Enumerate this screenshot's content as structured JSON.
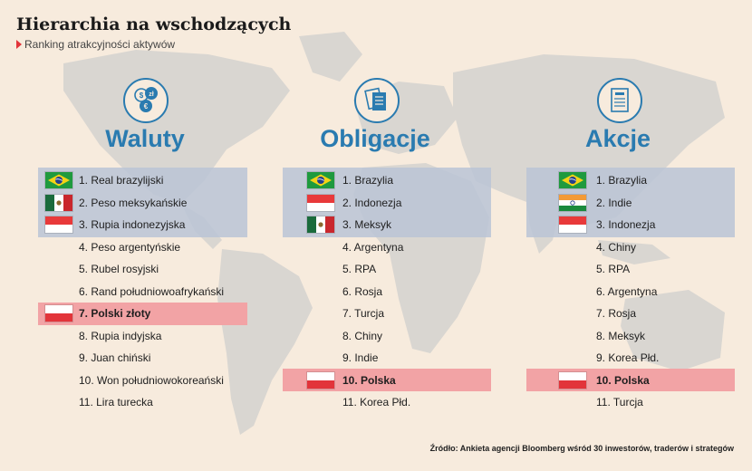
{
  "header": {
    "title": "Hierarchia na wschodzących",
    "subtitle": "Ranking atrakcyjności aktywów"
  },
  "columns": [
    {
      "title": "Waluty",
      "icon": "currency-coins-icon",
      "rows": [
        {
          "label": "1. Real brazylijski",
          "flag": "brazil",
          "highlight": "top"
        },
        {
          "label": "2. Peso meksykańskie",
          "flag": "mexico",
          "highlight": "top"
        },
        {
          "label": "3. Rupia indonezyjska",
          "flag": "indonesia",
          "highlight": "top"
        },
        {
          "label": "4. Peso argentyńskie",
          "flag": "",
          "highlight": ""
        },
        {
          "label": "5. Rubel rosyjski",
          "flag": "",
          "highlight": ""
        },
        {
          "label": "6. Rand południowoafrykański",
          "flag": "",
          "highlight": ""
        },
        {
          "label": "7. Polski złoty",
          "flag": "poland",
          "highlight": "pl"
        },
        {
          "label": "8. Rupia indyjska",
          "flag": "",
          "highlight": ""
        },
        {
          "label": "9. Juan chiński",
          "flag": "",
          "highlight": ""
        },
        {
          "label": "10. Won południowokoreański",
          "flag": "",
          "highlight": ""
        },
        {
          "label": "11. Lira turecka",
          "flag": "",
          "highlight": ""
        }
      ]
    },
    {
      "title": "Obligacje",
      "icon": "bond-documents-icon",
      "rows": [
        {
          "label": "1. Brazylia",
          "flag": "brazil",
          "highlight": "top"
        },
        {
          "label": "2. Indonezja",
          "flag": "indonesia",
          "highlight": "top"
        },
        {
          "label": "3. Meksyk",
          "flag": "mexico",
          "highlight": "top"
        },
        {
          "label": "4. Argentyna",
          "flag": "",
          "highlight": ""
        },
        {
          "label": "5. RPA",
          "flag": "",
          "highlight": ""
        },
        {
          "label": "6. Rosja",
          "flag": "",
          "highlight": ""
        },
        {
          "label": "7. Turcja",
          "flag": "",
          "highlight": ""
        },
        {
          "label": "8. Chiny",
          "flag": "",
          "highlight": ""
        },
        {
          "label": "9. Indie",
          "flag": "",
          "highlight": ""
        },
        {
          "label": "10. Polska",
          "flag": "poland",
          "highlight": "pl"
        },
        {
          "label": "11. Korea Płd.",
          "flag": "",
          "highlight": ""
        }
      ]
    },
    {
      "title": "Akcje",
      "icon": "stock-certificate-icon",
      "rows": [
        {
          "label": "1. Brazylia",
          "flag": "brazil",
          "highlight": "top"
        },
        {
          "label": "2. Indie",
          "flag": "india",
          "highlight": "top"
        },
        {
          "label": "3. Indonezja",
          "flag": "indonesia",
          "highlight": "top"
        },
        {
          "label": "4. Chiny",
          "flag": "",
          "highlight": ""
        },
        {
          "label": "5. RPA",
          "flag": "",
          "highlight": ""
        },
        {
          "label": "6. Argentyna",
          "flag": "",
          "highlight": ""
        },
        {
          "label": "7. Rosja",
          "flag": "",
          "highlight": ""
        },
        {
          "label": "8. Meksyk",
          "flag": "",
          "highlight": ""
        },
        {
          "label": "9. Korea Płd.",
          "flag": "",
          "highlight": ""
        },
        {
          "label": "10. Polska",
          "flag": "poland",
          "highlight": "pl"
        },
        {
          "label": "11. Turcja",
          "flag": "",
          "highlight": ""
        }
      ]
    }
  ],
  "source": "Źródło: Ankieta agencji Bloomberg wśród 30 inwestorów, traderów i strategów",
  "colors": {
    "background": "#f7ebdd",
    "accent": "#2a7bb0",
    "top_band": "#bac4d6",
    "poland_band": "#f2a3a5",
    "map": "#d9d6d1"
  }
}
